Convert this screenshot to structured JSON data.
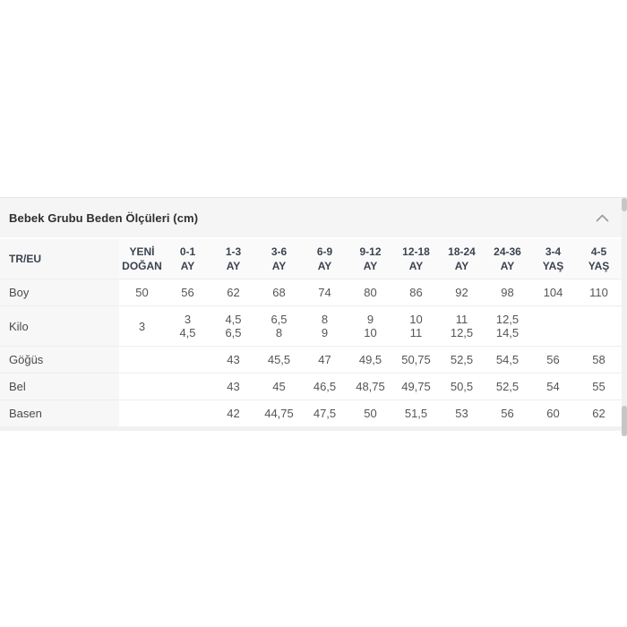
{
  "colors": {
    "header-bg": "#f5f5f5",
    "thead-bg": "#fafafa",
    "firstcol-bg": "#f7f7f7",
    "title-color": "#2f2f2f",
    "head-text": "#3b4350",
    "label-text": "#4a4a4a",
    "cell-text": "#555555",
    "border-strong": "#e7e7e7",
    "border-light": "#ededed",
    "footer-bg": "#f1f1f1",
    "sb-track": "#f0f0f0",
    "sb-thumb": "#c6c6c6"
  },
  "panel": {
    "title": "Bebek Grubu Beden Ölçüleri (cm)",
    "collapse_icon": "chevron-up-icon"
  },
  "table": {
    "columns": [
      [
        "TR/EU"
      ],
      [
        "YENİ",
        "DOĞAN"
      ],
      [
        "0-1",
        "AY"
      ],
      [
        "1-3",
        "AY"
      ],
      [
        "3-6",
        "AY"
      ],
      [
        "6-9",
        "AY"
      ],
      [
        "9-12",
        "AY"
      ],
      [
        "12-18",
        "AY"
      ],
      [
        "18-24",
        "AY"
      ],
      [
        "24-36",
        "AY"
      ],
      [
        "3-4",
        "YAŞ"
      ],
      [
        "4-5",
        "YAŞ"
      ]
    ],
    "rows": [
      {
        "label": "Boy",
        "values": [
          [
            "50"
          ],
          [
            "56"
          ],
          [
            "62"
          ],
          [
            "68"
          ],
          [
            "74"
          ],
          [
            "80"
          ],
          [
            "86"
          ],
          [
            "92"
          ],
          [
            "98"
          ],
          [
            "104"
          ],
          [
            "110"
          ]
        ]
      },
      {
        "label": "Kilo",
        "values": [
          [
            "3"
          ],
          [
            "3",
            "4,5"
          ],
          [
            "4,5",
            "6,5"
          ],
          [
            "6,5",
            "8"
          ],
          [
            "8",
            "9"
          ],
          [
            "9",
            "10"
          ],
          [
            "10",
            "11"
          ],
          [
            "11",
            "12,5"
          ],
          [
            "12,5",
            "14,5"
          ],
          [],
          []
        ]
      },
      {
        "label": "Göğüs",
        "values": [
          [],
          [],
          [
            "43"
          ],
          [
            "45,5"
          ],
          [
            "47"
          ],
          [
            "49,5"
          ],
          [
            "50,75"
          ],
          [
            "52,5"
          ],
          [
            "54,5"
          ],
          [
            "56"
          ],
          [
            "58"
          ]
        ]
      },
      {
        "label": "Bel",
        "values": [
          [],
          [],
          [
            "43"
          ],
          [
            "45"
          ],
          [
            "46,5"
          ],
          [
            "48,75"
          ],
          [
            "49,75"
          ],
          [
            "50,5"
          ],
          [
            "52,5"
          ],
          [
            "54"
          ],
          [
            "55"
          ]
        ]
      },
      {
        "label": "Basen",
        "values": [
          [],
          [],
          [
            "42"
          ],
          [
            "44,75"
          ],
          [
            "47,5"
          ],
          [
            "50"
          ],
          [
            "51,5"
          ],
          [
            "53"
          ],
          [
            "56"
          ],
          [
            "60"
          ],
          [
            "62"
          ]
        ]
      }
    ]
  }
}
